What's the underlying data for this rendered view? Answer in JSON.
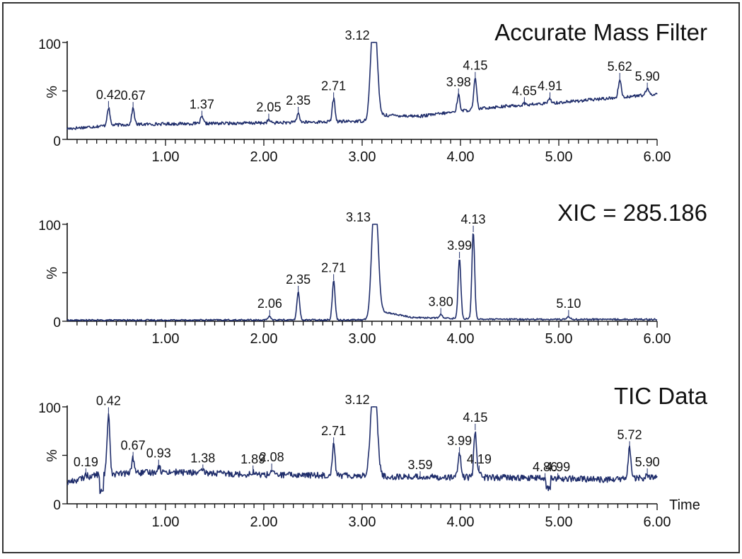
{
  "frame_color": "#333333",
  "trace_color": "#1f2d6b",
  "axis_color": "#111111",
  "chart_data": [
    {
      "type": "line",
      "title": "Accurate Mass Filter",
      "ylabel": "%",
      "xlabel": "",
      "xlim": [
        0,
        6.0
      ],
      "ylim": [
        0,
        100
      ],
      "x_ticks": [
        "1.00",
        "2.00",
        "3.00",
        "4.00",
        "5.00",
        "6.00"
      ],
      "y_ticks": [
        "0",
        "100"
      ],
      "baseline": [
        [
          0,
          11
        ],
        [
          0.5,
          15
        ],
        [
          1.0,
          16
        ],
        [
          2.0,
          17
        ],
        [
          2.6,
          18
        ],
        [
          3.05,
          19
        ],
        [
          3.2,
          25
        ],
        [
          3.6,
          24
        ],
        [
          4.3,
          33
        ],
        [
          5.0,
          38
        ],
        [
          5.8,
          45
        ],
        [
          6.0,
          47
        ]
      ],
      "peaks": [
        {
          "x": 0.42,
          "y": 33
        },
        {
          "x": 0.67,
          "y": 32
        },
        {
          "x": 1.37,
          "y": 23
        },
        {
          "x": 2.05,
          "y": 20
        },
        {
          "x": 2.35,
          "y": 27
        },
        {
          "x": 2.71,
          "y": 42
        },
        {
          "x": 3.12,
          "y": 100
        },
        {
          "x": 3.98,
          "y": 46
        },
        {
          "x": 4.15,
          "y": 63
        },
        {
          "x": 4.65,
          "y": 37
        },
        {
          "x": 4.91,
          "y": 42
        },
        {
          "x": 5.62,
          "y": 62
        },
        {
          "x": 5.9,
          "y": 52
        }
      ],
      "peak_labels": [
        "0.42",
        "0.67",
        "1.37",
        "2.05",
        "2.35",
        "2.71",
        "3.12",
        "3.98",
        "4.15",
        "4.65",
        "4.91",
        "5.62",
        "5.90"
      ]
    },
    {
      "type": "line",
      "title": "XIC = 285.186",
      "ylabel": "%",
      "xlabel": "",
      "xlim": [
        0,
        6.0
      ],
      "ylim": [
        0,
        100
      ],
      "x_ticks": [
        "1.00",
        "2.00",
        "3.00",
        "4.00",
        "5.00",
        "6.00"
      ],
      "y_ticks": [
        "0",
        "100"
      ],
      "baseline": [
        [
          0,
          1
        ],
        [
          3.05,
          1.5
        ],
        [
          3.2,
          10
        ],
        [
          3.5,
          4
        ],
        [
          4.3,
          2
        ],
        [
          6.0,
          2
        ]
      ],
      "peaks": [
        {
          "x": 2.06,
          "y": 5
        },
        {
          "x": 2.35,
          "y": 30
        },
        {
          "x": 2.71,
          "y": 42
        },
        {
          "x": 3.13,
          "y": 100
        },
        {
          "x": 3.8,
          "y": 7
        },
        {
          "x": 3.99,
          "y": 65
        },
        {
          "x": 4.13,
          "y": 92
        },
        {
          "x": 5.1,
          "y": 5
        }
      ],
      "peak_labels": [
        "2.06",
        "2.35",
        "2.71",
        "3.13",
        "3.80",
        "3.99",
        "4.13",
        "5.10"
      ]
    },
    {
      "type": "line",
      "title": "TIC Data",
      "ylabel": "%",
      "xlabel": "Time",
      "xlim": [
        0,
        6.0
      ],
      "ylim": [
        0,
        100
      ],
      "x_ticks": [
        "1.00",
        "2.00",
        "3.00",
        "4.00",
        "5.00",
        "6.00"
      ],
      "y_ticks": [
        "0",
        "100"
      ],
      "baseline": [
        [
          0,
          22
        ],
        [
          0.3,
          30
        ],
        [
          1.0,
          33
        ],
        [
          2.0,
          30
        ],
        [
          3.05,
          29
        ],
        [
          3.2,
          28
        ],
        [
          4.5,
          27
        ],
        [
          5.5,
          25
        ],
        [
          6.0,
          27
        ]
      ],
      "peaks": [
        {
          "x": 0.19,
          "y": 30
        },
        {
          "x": 0.42,
          "y": 93
        },
        {
          "x": 0.67,
          "y": 47
        },
        {
          "x": 0.93,
          "y": 39
        },
        {
          "x": 1.38,
          "y": 34
        },
        {
          "x": 1.89,
          "y": 33
        },
        {
          "x": 2.08,
          "y": 35
        },
        {
          "x": 2.71,
          "y": 62
        },
        {
          "x": 3.12,
          "y": 100
        },
        {
          "x": 3.59,
          "y": 27
        },
        {
          "x": 3.99,
          "y": 52
        },
        {
          "x": 4.15,
          "y": 76
        },
        {
          "x": 4.19,
          "y": 33
        },
        {
          "x": 4.86,
          "y": 25
        },
        {
          "x": 4.99,
          "y": 25
        },
        {
          "x": 5.72,
          "y": 58
        },
        {
          "x": 5.9,
          "y": 30
        }
      ],
      "peak_labels": [
        "0.19",
        "0.42",
        "0.67",
        "0.93",
        "1.38",
        "1.89",
        "2.08",
        "2.71",
        "3.12",
        "3.59",
        "3.99",
        "4.15",
        "4.19",
        "4.86",
        "4.99",
        "5.72",
        "5.90"
      ]
    }
  ]
}
